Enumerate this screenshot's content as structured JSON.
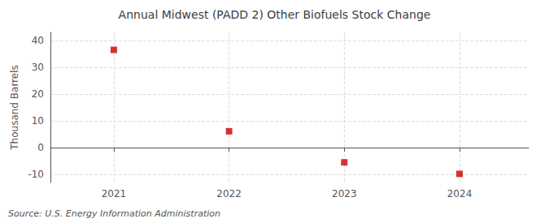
{
  "chart_data": {
    "type": "scatter",
    "title": "Annual Midwest (PADD 2) Other Biofuels Stock Change",
    "ylabel": "Thousand Barrels",
    "annotations": [
      "Source: U.S. Energy Information Administration"
    ],
    "x": [
      2021,
      2022,
      2023,
      2024
    ],
    "values": [
      36.5,
      6.1,
      -5.5,
      -9.8
    ],
    "color": "#cc0000",
    "marker": "square",
    "xlim": [
      2020.45,
      2024.6
    ],
    "xticks": [
      2021,
      2022,
      2023,
      2024
    ],
    "ylim": [
      -13,
      43
    ],
    "yticks": [
      -10,
      0,
      10,
      20,
      30,
      40
    ],
    "grid": true
  }
}
